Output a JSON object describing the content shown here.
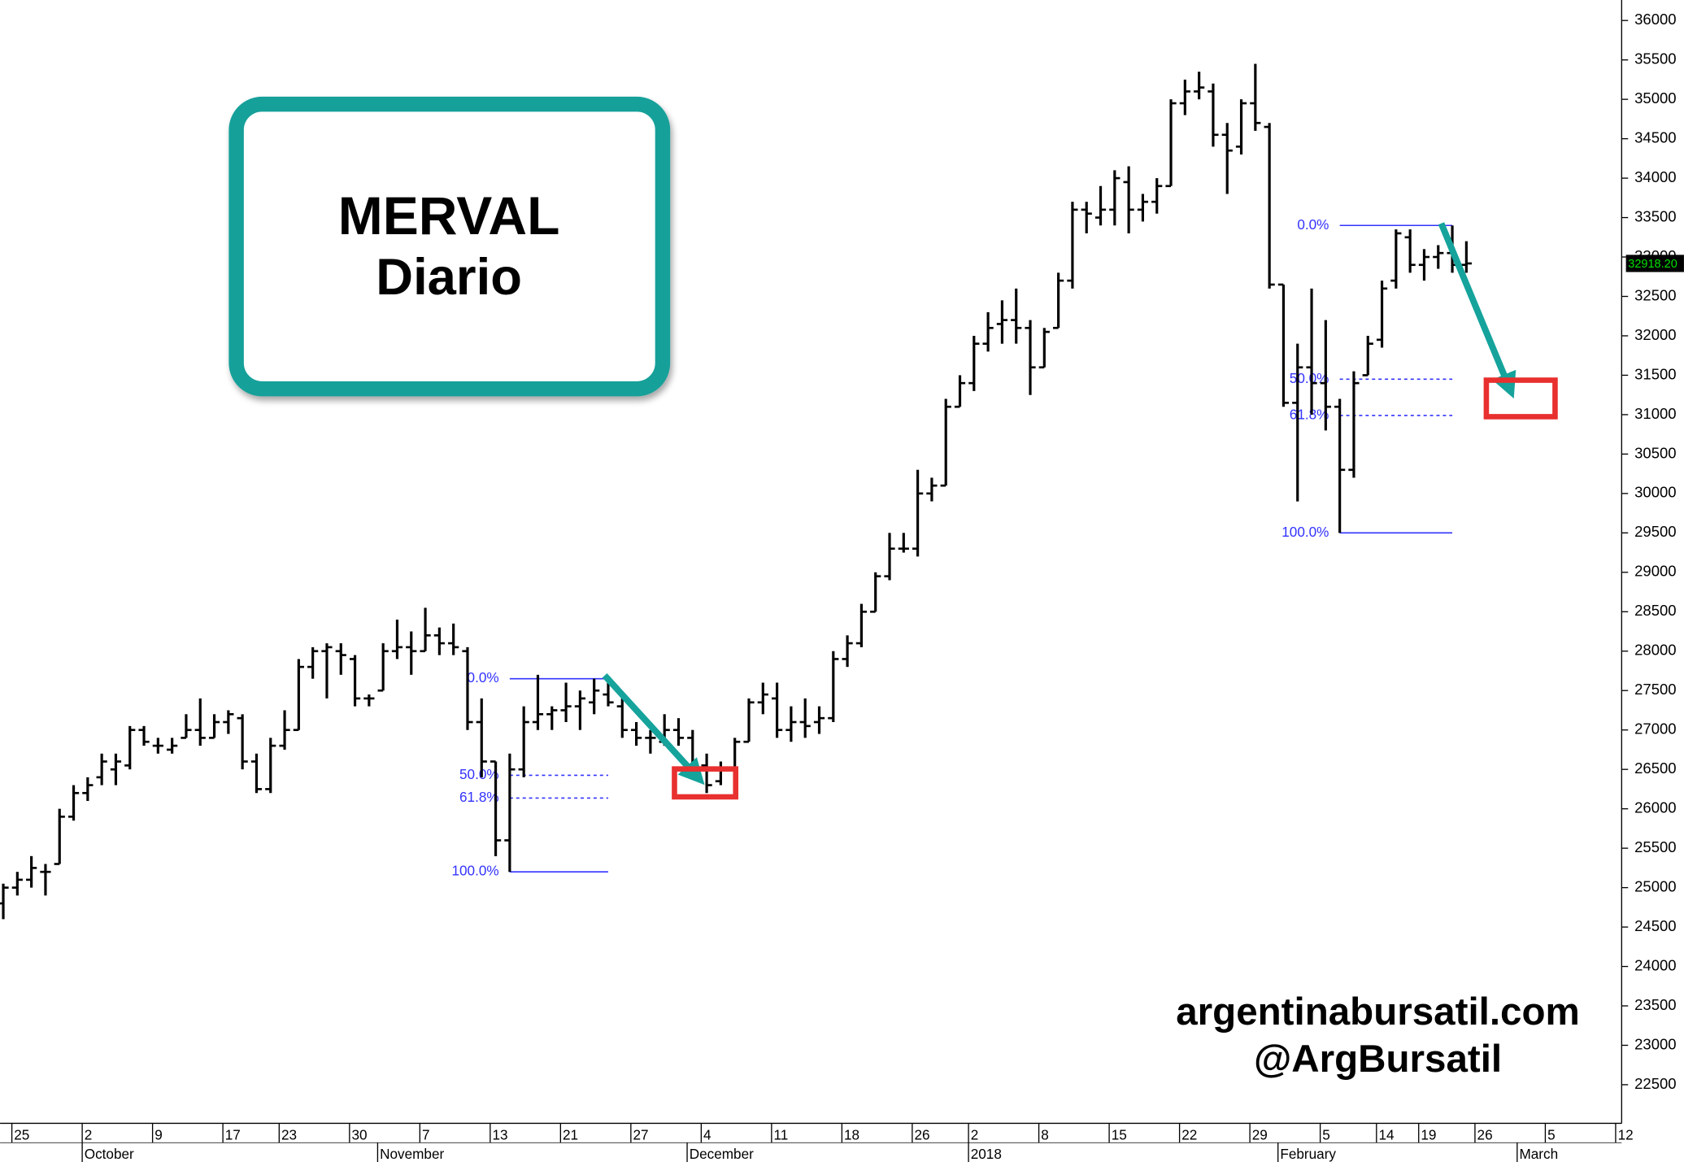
{
  "chart_data": {
    "type": "ohlc",
    "title": "MERVAL",
    "subtitle": "Diario",
    "annotations": [
      "argentinabursatil.com",
      "@ArgBursatil"
    ],
    "color": "#000000",
    "fib_color": "#3333ff",
    "ylim": [
      22010,
      36260
    ],
    "yticks": [
      22500,
      23000,
      23500,
      24000,
      24500,
      25000,
      25500,
      26000,
      26500,
      27000,
      27500,
      28000,
      28500,
      29000,
      29500,
      30000,
      30500,
      31000,
      31500,
      32000,
      32500,
      33000,
      33500,
      34000,
      34500,
      35000,
      35500,
      36000
    ],
    "categories": [
      "25",
      null,
      null,
      null,
      null,
      "2",
      null,
      null,
      null,
      null,
      "9",
      null,
      null,
      null,
      null,
      "17",
      null,
      null,
      null,
      "23",
      null,
      null,
      null,
      null,
      "30",
      null,
      null,
      null,
      null,
      "7",
      null,
      null,
      null,
      null,
      "13",
      null,
      null,
      null,
      null,
      "21",
      null,
      null,
      null,
      null,
      "27",
      null,
      null,
      null,
      null,
      "4",
      null,
      null,
      null,
      null,
      "11",
      null,
      null,
      null,
      null,
      "18",
      null,
      null,
      null,
      null,
      "26",
      null,
      null,
      null,
      "2",
      null,
      null,
      null,
      null,
      "8",
      null,
      null,
      null,
      null,
      "15",
      null,
      null,
      null,
      null,
      "22",
      null,
      null,
      null,
      null,
      "29",
      null,
      null,
      null,
      null,
      "5",
      null,
      null,
      null,
      "14",
      null,
      null,
      "19",
      null,
      null,
      null,
      "26",
      null,
      null,
      null,
      null,
      "5",
      null,
      null,
      null,
      null,
      "12"
    ],
    "months": [
      null,
      null,
      null,
      null,
      null,
      "October",
      null,
      null,
      null,
      null,
      null,
      null,
      null,
      null,
      null,
      null,
      null,
      null,
      null,
      null,
      null,
      null,
      null,
      null,
      null,
      null,
      "November",
      null,
      null,
      null,
      null,
      null,
      null,
      null,
      null,
      null,
      null,
      null,
      null,
      null,
      null,
      null,
      null,
      null,
      null,
      null,
      null,
      null,
      "December",
      null,
      null,
      null,
      null,
      null,
      null,
      null,
      null,
      null,
      null,
      null,
      null,
      null,
      null,
      null,
      null,
      null,
      null,
      null,
      "2018",
      null,
      null,
      null,
      null,
      null,
      null,
      null,
      null,
      null,
      null,
      null,
      null,
      null,
      null,
      null,
      null,
      null,
      null,
      null,
      null,
      null,
      "February",
      null,
      null,
      null,
      null,
      null,
      null,
      null,
      null,
      null,
      null,
      null,
      null,
      null,
      null,
      null,
      null,
      "March",
      null,
      null,
      null,
      null,
      null,
      null,
      null
    ],
    "open": [
      24800,
      25000,
      25100,
      25200,
      25300,
      25900,
      26200,
      26400,
      26500,
      26550,
      27000,
      26800,
      26750,
      26900,
      27000,
      26900,
      27100,
      27150,
      26600,
      26250,
      26800,
      27000,
      27800,
      28000,
      28000,
      27900,
      27400,
      27500,
      28000,
      28050,
      28000,
      28200,
      28100,
      28000,
      27100,
      26600,
      25600,
      26500,
      27100,
      27200,
      27250,
      27300,
      27350,
      27450,
      27300,
      27000,
      26900,
      26850,
      27000,
      26900,
      26550,
      26350,
      26500,
      26850,
      27350,
      27400,
      27000,
      27100,
      27100,
      27150,
      27900,
      28100,
      28500,
      28950,
      29300,
      29300,
      30000,
      30100,
      31100,
      31400,
      31900,
      32150,
      32200,
      32100,
      31600,
      32100,
      32700,
      33600,
      33500,
      33600,
      33950,
      33600,
      33700,
      33900,
      34950,
      35100,
      35100,
      34550,
      34400,
      34950,
      34650,
      32650,
      31150,
      31600,
      31400,
      31100,
      30300,
      31500,
      31950,
      32700,
      33250,
      32900,
      33000,
      33050,
      32900,
      null,
      null,
      null,
      null,
      null,
      null,
      null,
      null,
      null,
      null
    ],
    "high": [
      25050,
      25200,
      25400,
      25300,
      26000,
      26300,
      26400,
      26700,
      26700,
      27050,
      27050,
      26900,
      26900,
      27200,
      27400,
      27200,
      27250,
      27200,
      26700,
      26900,
      27250,
      27900,
      28050,
      28100,
      28100,
      27950,
      27450,
      28100,
      28400,
      28250,
      28550,
      28300,
      28350,
      28050,
      27400,
      26600,
      26700,
      27300,
      27700,
      27300,
      27600,
      27500,
      27650,
      27650,
      27400,
      27100,
      27000,
      27200,
      27150,
      27000,
      26700,
      26600,
      26900,
      27400,
      27600,
      27600,
      27300,
      27400,
      27300,
      28000,
      28200,
      28600,
      29000,
      29500,
      29500,
      30300,
      30200,
      31200,
      31500,
      32000,
      32300,
      32450,
      32600,
      32200,
      32100,
      32800,
      33700,
      33700,
      33900,
      34100,
      34150,
      33800,
      34000,
      35000,
      35250,
      35350,
      35200,
      34700,
      35000,
      35450,
      34700,
      32650,
      31900,
      32600,
      32200,
      31200,
      31550,
      32000,
      32700,
      33350,
      33350,
      33100,
      33150,
      33400,
      33200,
      null,
      null,
      null,
      null,
      null,
      null,
      null,
      null,
      null,
      null
    ],
    "low": [
      24600,
      24900,
      25000,
      24900,
      25300,
      25850,
      26100,
      26300,
      26300,
      26500,
      26800,
      26700,
      26700,
      26900,
      26800,
      26900,
      26950,
      26500,
      26200,
      26200,
      26750,
      27000,
      27650,
      27400,
      27700,
      27300,
      27300,
      27500,
      27900,
      27700,
      28000,
      27950,
      27950,
      27000,
      26400,
      25400,
      25200,
      26400,
      27000,
      27000,
      27100,
      27000,
      27200,
      27300,
      26900,
      26800,
      26700,
      26800,
      26800,
      26450,
      26200,
      26300,
      26500,
      26850,
      27200,
      26900,
      26850,
      26900,
      26950,
      27100,
      27800,
      28050,
      28500,
      28900,
      29250,
      29200,
      29900,
      30100,
      31100,
      31300,
      31800,
      31900,
      31900,
      31250,
      31600,
      32100,
      32600,
      33300,
      33400,
      33400,
      33300,
      33450,
      33550,
      33900,
      34800,
      35000,
      34400,
      33800,
      34300,
      34600,
      32600,
      31100,
      29900,
      31000,
      30800,
      29500,
      30200,
      31500,
      31850,
      32600,
      32800,
      32700,
      32850,
      32800,
      32800,
      null,
      null,
      null,
      null,
      null,
      null,
      null,
      null,
      null,
      null
    ],
    "close": [
      25000,
      25100,
      25250,
      25200,
      25900,
      26200,
      26300,
      26600,
      26600,
      27000,
      26850,
      26800,
      26800,
      27000,
      26900,
      27100,
      27200,
      26600,
      26250,
      26800,
      27000,
      27800,
      28000,
      28050,
      27950,
      27400,
      27400,
      28000,
      28050,
      28000,
      28200,
      28100,
      28050,
      27100,
      26600,
      25600,
      26500,
      27100,
      27200,
      27250,
      27300,
      27400,
      27500,
      27350,
      27000,
      26900,
      26900,
      27000,
      26900,
      26550,
      26300,
      26500,
      26850,
      27350,
      27450,
      27000,
      27100,
      27050,
      27150,
      27900,
      28100,
      28500,
      28950,
      29300,
      29300,
      30000,
      30100,
      31100,
      31400,
      31900,
      32100,
      32200,
      32100,
      31600,
      32050,
      32700,
      33600,
      33550,
      33600,
      34000,
      33600,
      33700,
      33900,
      34950,
      35100,
      35150,
      34550,
      34350,
      34950,
      34700,
      32650,
      31150,
      31600,
      31400,
      31100,
      30300,
      31400,
      31900,
      32600,
      33300,
      32900,
      33000,
      33050,
      32900,
      32918.2,
      null,
      null,
      null,
      null,
      null,
      null,
      null,
      null,
      null,
      null
    ],
    "last_price": {
      "value": 32918.2,
      "label": "32918.20"
    },
    "fibonacci": [
      {
        "start": 36,
        "end": 43,
        "levels": [
          {
            "value": 27650,
            "label": "0.0%"
          },
          {
            "value": 26425,
            "label": "50.0%"
          },
          {
            "value": 26136,
            "label": "61.8%"
          },
          {
            "value": 25200,
            "label": "100.0%"
          }
        ]
      },
      {
        "start": 95,
        "end": 103,
        "levels": [
          {
            "value": 33400,
            "label": "0.0%"
          },
          {
            "value": 31450,
            "label": "50.0%"
          },
          {
            "value": 30990,
            "label": "61.8%"
          },
          {
            "value": 29500,
            "label": "100.0%"
          }
        ]
      }
    ]
  }
}
